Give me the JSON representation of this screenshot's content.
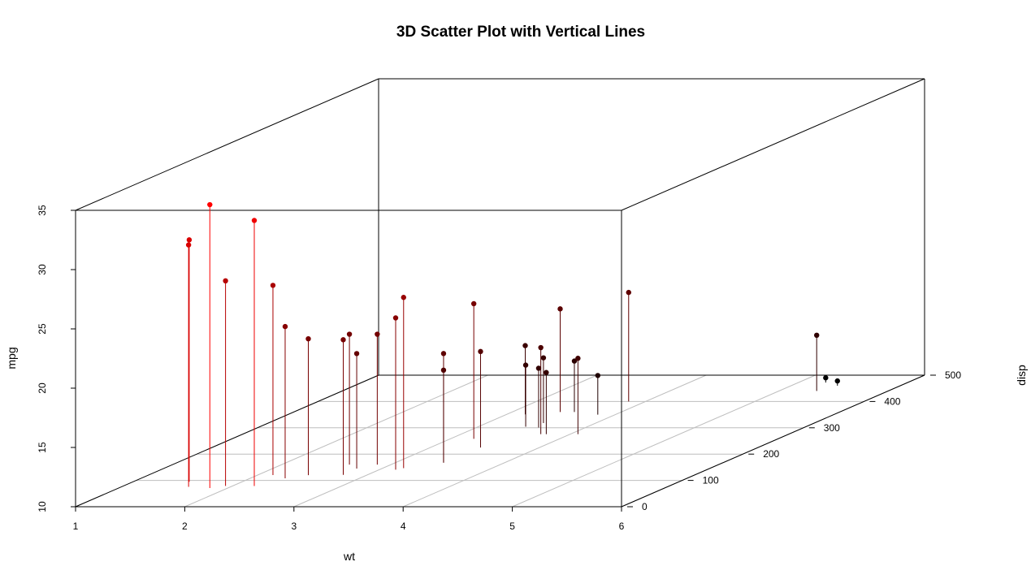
{
  "chart_data": {
    "type": "scatter",
    "title": "3D Scatter Plot with Vertical Lines",
    "xlabel": "wt",
    "ylabel": "disp",
    "zlabel": "mpg",
    "xlim": [
      1,
      6
    ],
    "ylim": [
      0,
      500
    ],
    "zlim": [
      10,
      35
    ],
    "x_ticks": [
      "1",
      "2",
      "3",
      "4",
      "5",
      "6"
    ],
    "y_ticks": [
      "0",
      "100",
      "200",
      "300",
      "400",
      "500"
    ],
    "z_ticks": [
      "10",
      "15",
      "20",
      "25",
      "30",
      "35"
    ],
    "grid": true,
    "vertical_lines": true,
    "color_scale": {
      "low_mpg": "#000000",
      "high_mpg": "#ff0000"
    },
    "box_color": "#000000",
    "grid_color": "#bebebe",
    "points": [
      {
        "wt": 2.62,
        "disp": 160,
        "mpg": 21.0
      },
      {
        "wt": 2.875,
        "disp": 160,
        "mpg": 21.0
      },
      {
        "wt": 2.32,
        "disp": 108,
        "mpg": 22.8
      },
      {
        "wt": 3.215,
        "disp": 258,
        "mpg": 21.4
      },
      {
        "wt": 3.44,
        "disp": 360,
        "mpg": 18.7
      },
      {
        "wt": 3.46,
        "disp": 225,
        "mpg": 18.1
      },
      {
        "wt": 3.57,
        "disp": 360,
        "mpg": 14.3
      },
      {
        "wt": 3.19,
        "disp": 146.7,
        "mpg": 24.4
      },
      {
        "wt": 3.15,
        "disp": 140.8,
        "mpg": 22.8
      },
      {
        "wt": 3.44,
        "disp": 167.6,
        "mpg": 19.2
      },
      {
        "wt": 3.44,
        "disp": 167.6,
        "mpg": 17.8
      },
      {
        "wt": 4.07,
        "disp": 275.8,
        "mpg": 16.4
      },
      {
        "wt": 3.73,
        "disp": 275.8,
        "mpg": 17.3
      },
      {
        "wt": 3.78,
        "disp": 275.8,
        "mpg": 15.2
      },
      {
        "wt": 5.25,
        "disp": 472,
        "mpg": 10.4
      },
      {
        "wt": 5.424,
        "disp": 460,
        "mpg": 10.4
      },
      {
        "wt": 5.345,
        "disp": 440,
        "mpg": 14.7
      },
      {
        "wt": 2.2,
        "disp": 78.7,
        "mpg": 32.4
      },
      {
        "wt": 1.615,
        "disp": 75.7,
        "mpg": 30.4
      },
      {
        "wt": 1.835,
        "disp": 71.1,
        "mpg": 33.9
      },
      {
        "wt": 2.465,
        "disp": 120.1,
        "mpg": 21.5
      },
      {
        "wt": 3.52,
        "disp": 318,
        "mpg": 15.5
      },
      {
        "wt": 3.435,
        "disp": 304,
        "mpg": 15.2
      },
      {
        "wt": 3.84,
        "disp": 350,
        "mpg": 13.3
      },
      {
        "wt": 3.845,
        "disp": 400,
        "mpg": 19.2
      },
      {
        "wt": 1.935,
        "disp": 79,
        "mpg": 27.3
      },
      {
        "wt": 2.14,
        "disp": 120.3,
        "mpg": 26.0
      },
      {
        "wt": 1.513,
        "disp": 95.1,
        "mpg": 30.4
      },
      {
        "wt": 3.17,
        "disp": 351,
        "mpg": 15.8
      },
      {
        "wt": 2.77,
        "disp": 145,
        "mpg": 19.7
      },
      {
        "wt": 3.57,
        "disp": 301,
        "mpg": 15.0
      },
      {
        "wt": 2.78,
        "disp": 121,
        "mpg": 21.4
      }
    ]
  }
}
